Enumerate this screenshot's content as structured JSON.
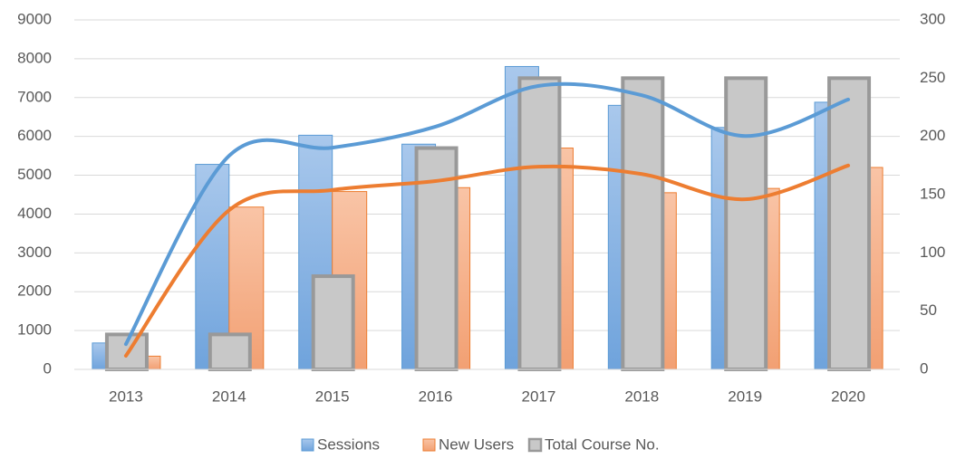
{
  "chart_data": {
    "type": "bar",
    "categories": [
      "2013",
      "2014",
      "2015",
      "2016",
      "2017",
      "2018",
      "2019",
      "2020"
    ],
    "series": [
      {
        "name": "Sessions",
        "color": "#5b9bd5",
        "values": [
          680,
          5280,
          6030,
          5800,
          7800,
          6800,
          6230,
          6880
        ]
      },
      {
        "name": "New Users",
        "color": "#ed7d31",
        "values": [
          340,
          4180,
          4580,
          4680,
          5700,
          4550,
          4660,
          5200
        ]
      },
      {
        "name": "Total Course No.",
        "color": "#a5a5a5",
        "axis": "y2",
        "values": [
          30,
          30,
          80,
          190,
          250,
          250,
          250,
          250
        ]
      }
    ],
    "line_series": [
      {
        "color": "#5b9bd5",
        "values": [
          650,
          5500,
          5710,
          6250,
          7300,
          7060,
          6010,
          6950
        ]
      },
      {
        "color": "#ed7d31",
        "values": [
          350,
          4100,
          4620,
          4850,
          5220,
          5030,
          4380,
          5250
        ]
      }
    ],
    "ylim": [
      0,
      9000
    ],
    "yticks": [
      0,
      1000,
      2000,
      3000,
      4000,
      5000,
      6000,
      7000,
      8000,
      9000
    ],
    "y2lim": [
      0,
      300
    ],
    "y2ticks": [
      0,
      50,
      100,
      150,
      200,
      250,
      300
    ],
    "grid": true,
    "legend": "bottom"
  }
}
